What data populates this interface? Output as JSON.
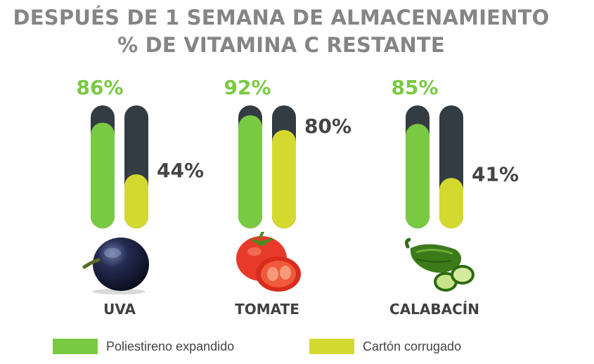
{
  "chart_data": {
    "type": "bar",
    "title_line1": "DESPUÉS DE 1 SEMANA DE ALMACENAMIENTO",
    "title_line2": "% DE VITAMINA C RESTANTE",
    "categories": [
      "UVA",
      "TOMATE",
      "CALABACÍN"
    ],
    "series": [
      {
        "name": "Poliestireno expandido",
        "color": "#7ac943",
        "values": [
          86,
          92,
          85
        ],
        "labels": [
          "86%",
          "92%",
          "85%"
        ]
      },
      {
        "name": "Cartón corrugado",
        "color": "#d4d930",
        "values": [
          44,
          80,
          41
        ],
        "labels": [
          "44%",
          "80%",
          "41%"
        ]
      }
    ],
    "track_color": "#333c42",
    "ylim": [
      0,
      100
    ],
    "grid": false,
    "legend_position": "bottom"
  },
  "icons": [
    "grape-icon",
    "tomato-icon",
    "zucchini-icon"
  ]
}
